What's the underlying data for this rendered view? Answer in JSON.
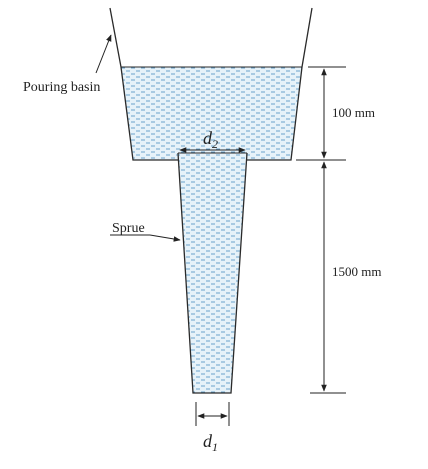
{
  "labels": {
    "pouring_basin": "Pouring basin",
    "sprue": "Sprue",
    "dim_basin_height": "100 mm",
    "dim_sprue_height": "1500 mm",
    "d2": {
      "symbol": "d",
      "subscript": "2"
    },
    "d1": {
      "symbol": "d",
      "subscript": "1"
    }
  },
  "colors": {
    "liquid_fill": "#e6f2f9",
    "liquid_dash": "#5b9ac6",
    "outline": "#2a2a2a"
  }
}
